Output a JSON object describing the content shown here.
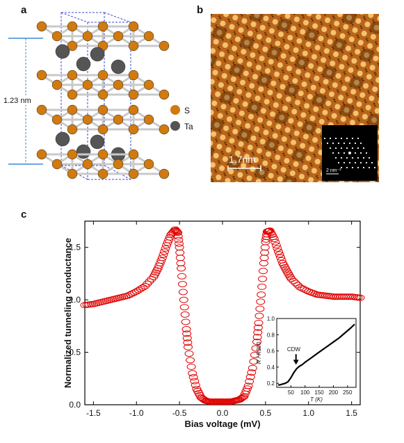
{
  "panels": {
    "a": "a",
    "b": "b",
    "c": "c"
  },
  "panel_a": {
    "height_label": "1.23 nm",
    "legend": [
      {
        "label": "S",
        "color": "#d07a10"
      },
      {
        "label": "Ta",
        "color": "#555555"
      }
    ]
  },
  "panel_b": {
    "scale_bar_label": "1.7nm",
    "inset_scale_label": "2 nm⁻¹",
    "colors": {
      "dark": "#3a1a00",
      "mid": "#b8641a",
      "bright": "#ffd27a"
    }
  },
  "chart_data": [
    {
      "type": "scatter",
      "xlabel": "Bias voltage (mV)",
      "ylabel": "Normalized tunneling conductance",
      "xlim": [
        -1.6,
        1.6
      ],
      "ylim": [
        0.0,
        1.75
      ],
      "xticks": [
        "-1.5",
        "-1.0",
        "-0.5",
        "0.0",
        "0.5",
        "1.0",
        "1.5"
      ],
      "yticks": [
        "0.0",
        "0.5",
        "1.0",
        "1.5"
      ],
      "marker_color": "#e00000",
      "series": [
        {
          "x": [
            -1.6,
            -1.5,
            -1.4,
            -1.3,
            -1.2,
            -1.1,
            -1.0,
            -0.9,
            -0.8,
            -0.75,
            -0.7,
            -0.65,
            -0.6,
            -0.55,
            -0.52,
            -0.5,
            -0.48,
            -0.45,
            -0.42,
            -0.4,
            -0.35,
            -0.3,
            -0.25,
            -0.2,
            -0.15,
            -0.1,
            -0.05,
            0.0,
            0.05,
            0.1,
            0.15,
            0.2,
            0.25,
            0.3,
            0.35,
            0.4,
            0.42,
            0.45,
            0.48,
            0.5,
            0.52,
            0.55,
            0.6,
            0.65,
            0.7,
            0.75,
            0.8,
            0.9,
            1.0,
            1.1,
            1.2,
            1.3,
            1.4,
            1.5,
            1.6
          ],
          "y": [
            0.95,
            0.96,
            0.98,
            1.0,
            1.02,
            1.04,
            1.08,
            1.13,
            1.22,
            1.3,
            1.4,
            1.52,
            1.62,
            1.67,
            1.64,
            1.5,
            1.3,
            1.0,
            0.72,
            0.55,
            0.3,
            0.15,
            0.07,
            0.04,
            0.03,
            0.03,
            0.03,
            0.03,
            0.03,
            0.03,
            0.04,
            0.05,
            0.08,
            0.18,
            0.35,
            0.6,
            0.78,
            1.05,
            1.35,
            1.55,
            1.65,
            1.66,
            1.58,
            1.46,
            1.35,
            1.27,
            1.2,
            1.12,
            1.08,
            1.05,
            1.04,
            1.03,
            1.03,
            1.03,
            1.02
          ]
        }
      ]
    },
    {
      "type": "line",
      "xlabel": "T (K)",
      "ylabel": "R / R300",
      "xlim": [
        0,
        280
      ],
      "ylim": [
        0.15,
        1.0
      ],
      "xticks": [
        "50",
        "100",
        "150",
        "200",
        "250"
      ],
      "yticks": [
        "0.2",
        "0.4",
        "0.6",
        "0.8",
        "1.0"
      ],
      "annotation": "CDW",
      "series": [
        {
          "x": [
            5,
            10,
            20,
            30,
            40,
            50,
            60,
            70,
            80,
            90,
            100,
            120,
            140,
            160,
            180,
            200,
            220,
            240,
            260,
            275
          ],
          "y": [
            0.18,
            0.18,
            0.19,
            0.2,
            0.22,
            0.27,
            0.33,
            0.38,
            0.41,
            0.43,
            0.46,
            0.51,
            0.56,
            0.61,
            0.66,
            0.71,
            0.76,
            0.82,
            0.88,
            0.93
          ]
        }
      ]
    }
  ]
}
